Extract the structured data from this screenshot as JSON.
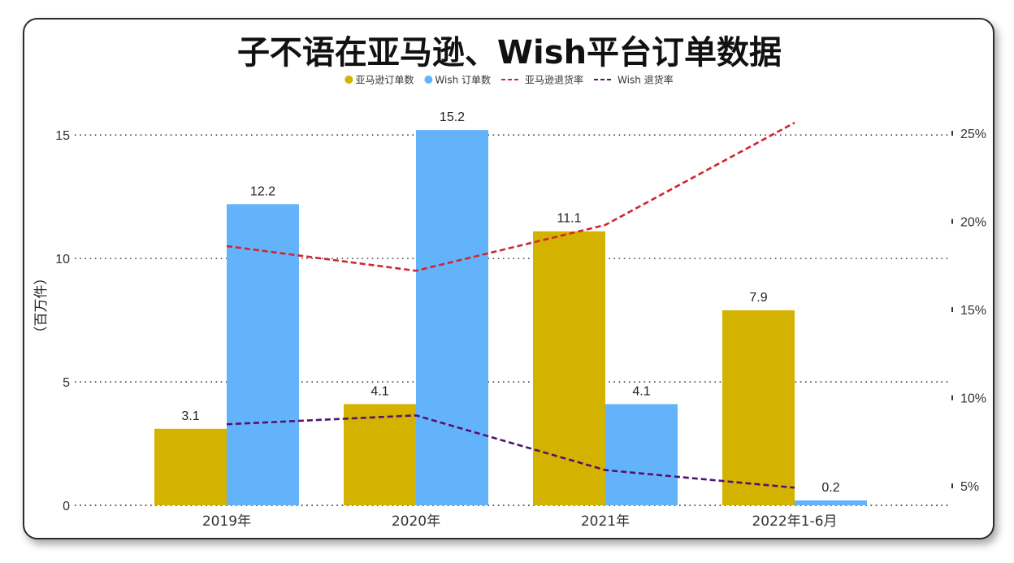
{
  "colors": {
    "amazon_orders": "#D4B200",
    "wish_orders": "#63B3FB",
    "amazon_return": "#D0262F",
    "wish_return": "#54126E"
  },
  "chart_data": {
    "type": "bar",
    "title": "子不语在亚马逊、Wish平台订单数据",
    "ylabel": "（百万件）",
    "xlabel": "",
    "categories": [
      "2019年",
      "2020年",
      "2021年",
      "2022年1-6月"
    ],
    "ylim": [
      0,
      15.5
    ],
    "yticks": [
      0,
      5,
      10,
      15
    ],
    "ytick_labels": [
      "0",
      "5",
      "10",
      "15"
    ],
    "y2lim": [
      3.9,
      25.6
    ],
    "y2ticks": [
      5,
      10,
      15,
      20,
      25
    ],
    "y2tick_labels": [
      "5%",
      "10%",
      "15%",
      "20%",
      "25%"
    ],
    "legend_position": "top-center",
    "series": [
      {
        "name": "亚马逊订单数",
        "kind": "bar",
        "axis": "left",
        "values": [
          3.1,
          4.1,
          11.1,
          7.9
        ],
        "labels": [
          "3.1",
          "4.1",
          "11.1",
          "7.9"
        ]
      },
      {
        "name": "Wish 订单数",
        "kind": "bar",
        "axis": "left",
        "values": [
          12.2,
          15.2,
          4.1,
          0.2
        ],
        "labels": [
          "12.2",
          "15.2",
          "4.1",
          "0.2"
        ]
      },
      {
        "name": "亚马逊退货率",
        "kind": "line",
        "dashed": true,
        "axis": "right",
        "values": [
          18.6,
          17.2,
          19.8,
          25.6
        ]
      },
      {
        "name": "Wish 退货率",
        "kind": "line",
        "dashed": true,
        "axis": "right",
        "values": [
          8.5,
          9.0,
          5.9,
          4.9
        ]
      }
    ]
  }
}
